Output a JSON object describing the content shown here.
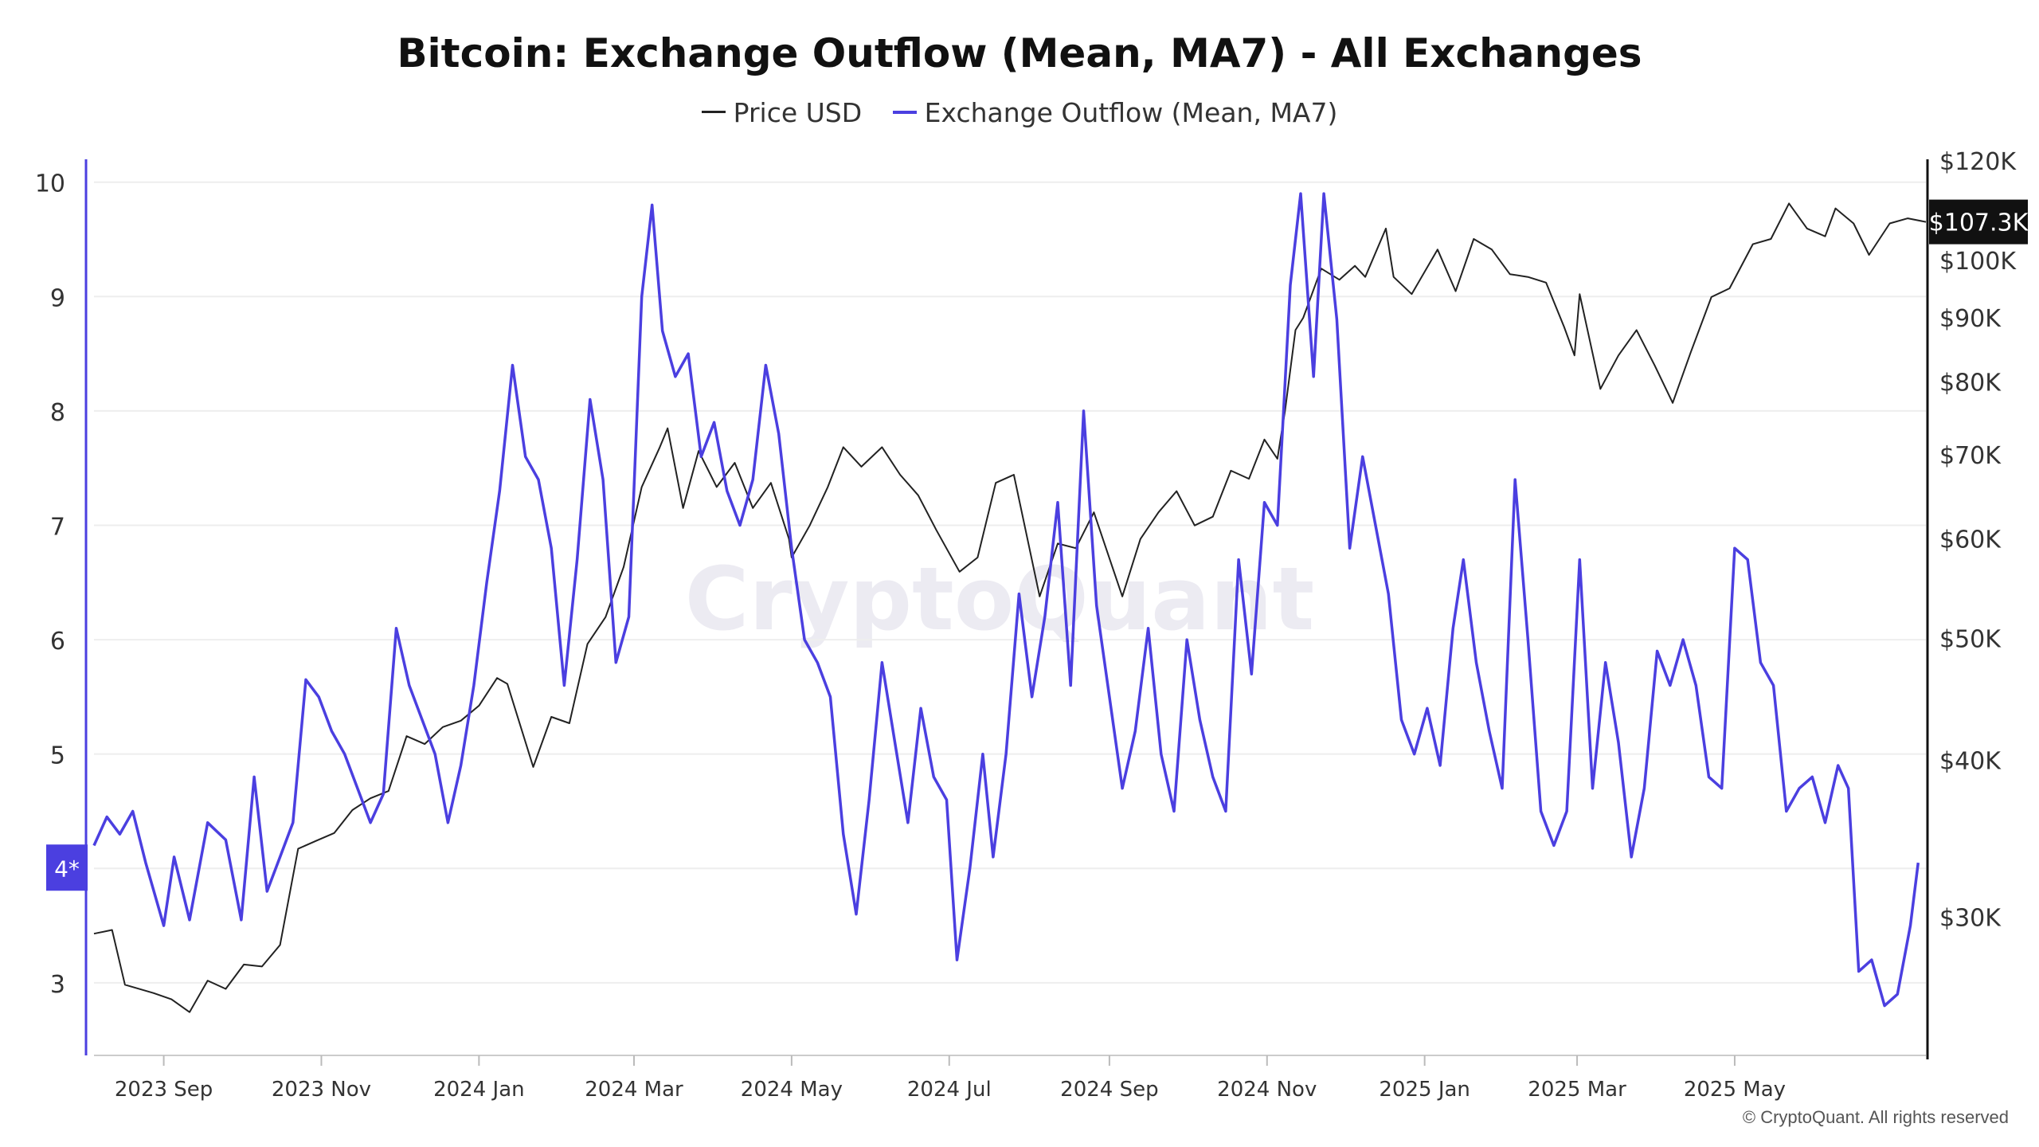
{
  "chart_data": {
    "type": "line",
    "title": "Bitcoin: Exchange Outflow (Mean, MA7) - All Exchanges",
    "watermark": "CryptoQuant",
    "copyright": "© CryptoQuant. All rights reserved",
    "x_ticks": [
      "2023 Sep",
      "2023 Nov",
      "2024 Jan",
      "2024 Mar",
      "2024 May",
      "2024 Jul",
      "2024 Sep",
      "2024 Nov",
      "2025 Jan",
      "2025 Mar",
      "2025 May"
    ],
    "x_tick_dates": [
      "2023-09-01",
      "2023-11-01",
      "2024-01-01",
      "2024-03-01",
      "2024-05-01",
      "2024-07-01",
      "2024-09-01",
      "2024-11-01",
      "2025-01-01",
      "2025-03-01",
      "2025-05-01"
    ],
    "x_range": [
      "2023-08-05",
      "2025-07-14"
    ],
    "left_axis": {
      "ticks": [
        3,
        4,
        5,
        6,
        7,
        8,
        9,
        10
      ],
      "ylim": [
        2.4,
        10.2
      ],
      "current_label": "4*",
      "current_value": 4.0
    },
    "right_axis": {
      "scale": "log",
      "ticks": [
        30000,
        40000,
        50000,
        60000,
        70000,
        80000,
        90000,
        100000,
        120000
      ],
      "tick_labels": [
        "$30K",
        "$40K",
        "$50K",
        "$60K",
        "$70K",
        "$80K",
        "$90K",
        "$100K",
        "$120K"
      ],
      "current_label": "$107.3K",
      "current_value": 107300
    },
    "grid": true,
    "series": [
      {
        "name": "Price USD",
        "color": "#222222",
        "axis": "right",
        "points": [
          [
            "2023-08-05",
            29100
          ],
          [
            "2023-08-12",
            29300
          ],
          [
            "2023-08-17",
            26500
          ],
          [
            "2023-08-28",
            26100
          ],
          [
            "2023-09-04",
            25800
          ],
          [
            "2023-09-11",
            25200
          ],
          [
            "2023-09-18",
            26700
          ],
          [
            "2023-09-25",
            26300
          ],
          [
            "2023-10-02",
            27500
          ],
          [
            "2023-10-09",
            27400
          ],
          [
            "2023-10-16",
            28500
          ],
          [
            "2023-10-23",
            34000
          ],
          [
            "2023-10-30",
            34500
          ],
          [
            "2023-11-06",
            35000
          ],
          [
            "2023-11-13",
            36500
          ],
          [
            "2023-11-20",
            37300
          ],
          [
            "2023-11-27",
            37800
          ],
          [
            "2023-12-04",
            41800
          ],
          [
            "2023-12-11",
            41200
          ],
          [
            "2023-12-18",
            42500
          ],
          [
            "2023-12-25",
            43000
          ],
          [
            "2024-01-01",
            44200
          ],
          [
            "2024-01-08",
            46500
          ],
          [
            "2024-01-12",
            46000
          ],
          [
            "2024-01-22",
            39500
          ],
          [
            "2024-01-29",
            43300
          ],
          [
            "2024-02-05",
            42800
          ],
          [
            "2024-02-12",
            49500
          ],
          [
            "2024-02-19",
            52000
          ],
          [
            "2024-02-26",
            57000
          ],
          [
            "2024-03-04",
            66000
          ],
          [
            "2024-03-11",
            71000
          ],
          [
            "2024-03-14",
            73500
          ],
          [
            "2024-03-20",
            63500
          ],
          [
            "2024-03-26",
            70500
          ],
          [
            "2024-04-02",
            66000
          ],
          [
            "2024-04-09",
            69000
          ],
          [
            "2024-04-16",
            63500
          ],
          [
            "2024-04-23",
            66500
          ],
          [
            "2024-04-30",
            60000
          ],
          [
            "2024-05-01",
            58000
          ],
          [
            "2024-05-08",
            61500
          ],
          [
            "2024-05-15",
            66000
          ],
          [
            "2024-05-21",
            71000
          ],
          [
            "2024-05-28",
            68500
          ],
          [
            "2024-06-05",
            71000
          ],
          [
            "2024-06-12",
            67500
          ],
          [
            "2024-06-19",
            65000
          ],
          [
            "2024-06-26",
            61000
          ],
          [
            "2024-07-05",
            56500
          ],
          [
            "2024-07-12",
            58000
          ],
          [
            "2024-07-19",
            66500
          ],
          [
            "2024-07-26",
            67500
          ],
          [
            "2024-08-05",
            54000
          ],
          [
            "2024-08-12",
            59500
          ],
          [
            "2024-08-19",
            59000
          ],
          [
            "2024-08-26",
            63000
          ],
          [
            "2024-09-06",
            54000
          ],
          [
            "2024-09-13",
            60000
          ],
          [
            "2024-09-20",
            63000
          ],
          [
            "2024-09-27",
            65500
          ],
          [
            "2024-10-04",
            61500
          ],
          [
            "2024-10-11",
            62500
          ],
          [
            "2024-10-18",
            68000
          ],
          [
            "2024-10-25",
            67000
          ],
          [
            "2024-10-31",
            72000
          ],
          [
            "2024-11-05",
            69500
          ],
          [
            "2024-11-08",
            76000
          ],
          [
            "2024-11-12",
            88000
          ],
          [
            "2024-11-15",
            90000
          ],
          [
            "2024-11-22",
            98500
          ],
          [
            "2024-11-29",
            96500
          ],
          [
            "2024-12-05",
            99000
          ],
          [
            "2024-12-09",
            97000
          ],
          [
            "2024-12-17",
            106000
          ],
          [
            "2024-12-20",
            97000
          ],
          [
            "2024-12-27",
            94000
          ],
          [
            "2025-01-06",
            102000
          ],
          [
            "2025-01-13",
            94500
          ],
          [
            "2025-01-20",
            104000
          ],
          [
            "2025-01-27",
            102000
          ],
          [
            "2025-02-03",
            97500
          ],
          [
            "2025-02-10",
            97000
          ],
          [
            "2025-02-17",
            96000
          ],
          [
            "2025-02-24",
            88500
          ],
          [
            "2025-02-28",
            84000
          ],
          [
            "2025-03-02",
            94000
          ],
          [
            "2025-03-10",
            79000
          ],
          [
            "2025-03-17",
            84000
          ],
          [
            "2025-03-24",
            88000
          ],
          [
            "2025-03-31",
            82500
          ],
          [
            "2025-04-07",
            77000
          ],
          [
            "2025-04-14",
            84500
          ],
          [
            "2025-04-22",
            93500
          ],
          [
            "2025-04-29",
            95000
          ],
          [
            "2025-05-08",
            103000
          ],
          [
            "2025-05-15",
            104000
          ],
          [
            "2025-05-22",
            111000
          ],
          [
            "2025-05-29",
            106000
          ],
          [
            "2025-06-05",
            104500
          ],
          [
            "2025-06-09",
            110000
          ],
          [
            "2025-06-16",
            107000
          ],
          [
            "2025-06-22",
            101000
          ],
          [
            "2025-06-30",
            107000
          ],
          [
            "2025-07-07",
            108000
          ],
          [
            "2025-07-14",
            107300
          ]
        ]
      },
      {
        "name": "Exchange Outflow (Mean, MA7)",
        "color": "#4B3FE0",
        "axis": "left",
        "points": [
          [
            "2023-08-05",
            4.2
          ],
          [
            "2023-08-10",
            4.45
          ],
          [
            "2023-08-15",
            4.3
          ],
          [
            "2023-08-20",
            4.5
          ],
          [
            "2023-08-25",
            4.05
          ],
          [
            "2023-09-01",
            3.5
          ],
          [
            "2023-09-05",
            4.1
          ],
          [
            "2023-09-11",
            3.55
          ],
          [
            "2023-09-18",
            4.4
          ],
          [
            "2023-09-25",
            4.25
          ],
          [
            "2023-10-01",
            3.55
          ],
          [
            "2023-10-06",
            4.8
          ],
          [
            "2023-10-11",
            3.8
          ],
          [
            "2023-10-16",
            4.1
          ],
          [
            "2023-10-21",
            4.4
          ],
          [
            "2023-10-26",
            5.65
          ],
          [
            "2023-10-31",
            5.5
          ],
          [
            "2023-11-05",
            5.2
          ],
          [
            "2023-11-10",
            5.0
          ],
          [
            "2023-11-15",
            4.7
          ],
          [
            "2023-11-20",
            4.4
          ],
          [
            "2023-11-25",
            4.65
          ],
          [
            "2023-11-30",
            6.1
          ],
          [
            "2023-12-05",
            5.6
          ],
          [
            "2023-12-10",
            5.3
          ],
          [
            "2023-12-15",
            5.0
          ],
          [
            "2023-12-20",
            4.4
          ],
          [
            "2023-12-25",
            4.9
          ],
          [
            "2023-12-30",
            5.6
          ],
          [
            "2024-01-04",
            6.5
          ],
          [
            "2024-01-09",
            7.3
          ],
          [
            "2024-01-14",
            8.4
          ],
          [
            "2024-01-19",
            7.6
          ],
          [
            "2024-01-24",
            7.4
          ],
          [
            "2024-01-29",
            6.8
          ],
          [
            "2024-02-03",
            5.6
          ],
          [
            "2024-02-08",
            6.7
          ],
          [
            "2024-02-13",
            8.1
          ],
          [
            "2024-02-18",
            7.4
          ],
          [
            "2024-02-23",
            5.8
          ],
          [
            "2024-02-28",
            6.2
          ],
          [
            "2024-03-04",
            9.0
          ],
          [
            "2024-03-08",
            9.8
          ],
          [
            "2024-03-12",
            8.7
          ],
          [
            "2024-03-17",
            8.3
          ],
          [
            "2024-03-22",
            8.5
          ],
          [
            "2024-03-27",
            7.6
          ],
          [
            "2024-04-01",
            7.9
          ],
          [
            "2024-04-06",
            7.3
          ],
          [
            "2024-04-11",
            7.0
          ],
          [
            "2024-04-16",
            7.4
          ],
          [
            "2024-04-21",
            8.4
          ],
          [
            "2024-04-26",
            7.8
          ],
          [
            "2024-05-01",
            6.8
          ],
          [
            "2024-05-06",
            6.0
          ],
          [
            "2024-05-11",
            5.8
          ],
          [
            "2024-05-16",
            5.5
          ],
          [
            "2024-05-21",
            4.3
          ],
          [
            "2024-05-26",
            3.6
          ],
          [
            "2024-05-31",
            4.6
          ],
          [
            "2024-06-05",
            5.8
          ],
          [
            "2024-06-10",
            5.1
          ],
          [
            "2024-06-15",
            4.4
          ],
          [
            "2024-06-20",
            5.4
          ],
          [
            "2024-06-25",
            4.8
          ],
          [
            "2024-06-30",
            4.6
          ],
          [
            "2024-07-04",
            3.2
          ],
          [
            "2024-07-09",
            4.0
          ],
          [
            "2024-07-14",
            5.0
          ],
          [
            "2024-07-18",
            4.1
          ],
          [
            "2024-07-23",
            5.0
          ],
          [
            "2024-07-28",
            6.4
          ],
          [
            "2024-08-02",
            5.5
          ],
          [
            "2024-08-07",
            6.2
          ],
          [
            "2024-08-12",
            7.2
          ],
          [
            "2024-08-17",
            5.6
          ],
          [
            "2024-08-22",
            8.0
          ],
          [
            "2024-08-27",
            6.3
          ],
          [
            "2024-09-01",
            5.5
          ],
          [
            "2024-09-06",
            4.7
          ],
          [
            "2024-09-11",
            5.2
          ],
          [
            "2024-09-16",
            6.1
          ],
          [
            "2024-09-21",
            5.0
          ],
          [
            "2024-09-26",
            4.5
          ],
          [
            "2024-10-01",
            6.0
          ],
          [
            "2024-10-06",
            5.3
          ],
          [
            "2024-10-11",
            4.8
          ],
          [
            "2024-10-16",
            4.5
          ],
          [
            "2024-10-21",
            6.7
          ],
          [
            "2024-10-26",
            5.7
          ],
          [
            "2024-10-31",
            7.2
          ],
          [
            "2024-11-05",
            7.0
          ],
          [
            "2024-11-10",
            9.1
          ],
          [
            "2024-11-14",
            9.9
          ],
          [
            "2024-11-19",
            8.3
          ],
          [
            "2024-11-23",
            9.9
          ],
          [
            "2024-11-28",
            8.8
          ],
          [
            "2024-12-03",
            6.8
          ],
          [
            "2024-12-08",
            7.6
          ],
          [
            "2024-12-13",
            7.0
          ],
          [
            "2024-12-18",
            6.4
          ],
          [
            "2024-12-23",
            5.3
          ],
          [
            "2024-12-28",
            5.0
          ],
          [
            "2025-01-02",
            5.4
          ],
          [
            "2025-01-07",
            4.9
          ],
          [
            "2025-01-12",
            6.1
          ],
          [
            "2025-01-16",
            6.7
          ],
          [
            "2025-01-21",
            5.8
          ],
          [
            "2025-01-26",
            5.2
          ],
          [
            "2025-01-31",
            4.7
          ],
          [
            "2025-02-05",
            7.4
          ],
          [
            "2025-02-10",
            6.0
          ],
          [
            "2025-02-15",
            4.5
          ],
          [
            "2025-02-20",
            4.2
          ],
          [
            "2025-02-25",
            4.5
          ],
          [
            "2025-03-02",
            6.7
          ],
          [
            "2025-03-07",
            4.7
          ],
          [
            "2025-03-12",
            5.8
          ],
          [
            "2025-03-17",
            5.1
          ],
          [
            "2025-03-22",
            4.1
          ],
          [
            "2025-03-27",
            4.7
          ],
          [
            "2025-04-01",
            5.9
          ],
          [
            "2025-04-06",
            5.6
          ],
          [
            "2025-04-11",
            6.0
          ],
          [
            "2025-04-16",
            5.6
          ],
          [
            "2025-04-21",
            4.8
          ],
          [
            "2025-04-26",
            4.7
          ],
          [
            "2025-05-01",
            6.8
          ],
          [
            "2025-05-06",
            6.7
          ],
          [
            "2025-05-11",
            5.8
          ],
          [
            "2025-05-16",
            5.6
          ],
          [
            "2025-05-21",
            4.5
          ],
          [
            "2025-05-26",
            4.7
          ],
          [
            "2025-05-31",
            4.8
          ],
          [
            "2025-06-05",
            4.4
          ],
          [
            "2025-06-10",
            4.9
          ],
          [
            "2025-06-14",
            4.7
          ],
          [
            "2025-06-18",
            3.1
          ],
          [
            "2025-06-23",
            3.2
          ],
          [
            "2025-06-28",
            2.8
          ],
          [
            "2025-07-03",
            2.9
          ],
          [
            "2025-07-08",
            3.5
          ],
          [
            "2025-07-11",
            4.05
          ]
        ]
      }
    ]
  }
}
